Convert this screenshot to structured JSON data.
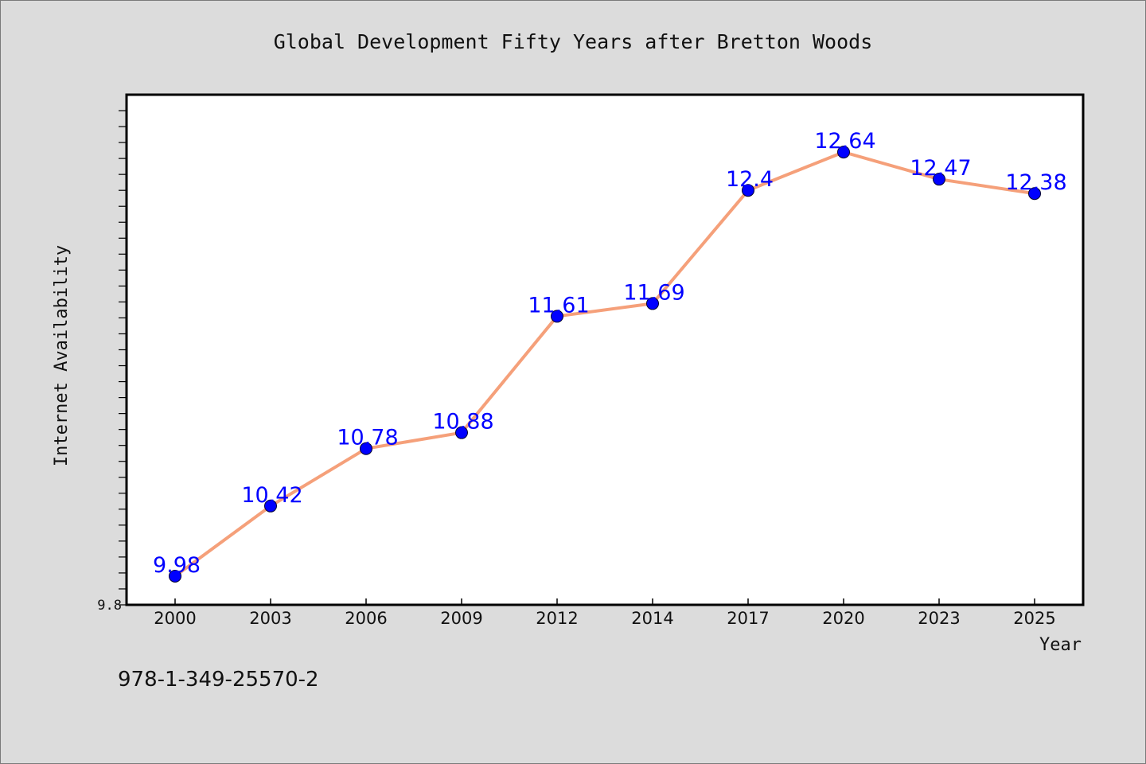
{
  "chart_data": {
    "type": "line",
    "title": "Global Development Fifty Years after Bretton Woods",
    "xlabel": "Year",
    "ylabel": "Internet Availability",
    "categories": [
      "2000",
      "2003",
      "2006",
      "2009",
      "2012",
      "2014",
      "2017",
      "2020",
      "2023",
      "2025"
    ],
    "values": [
      9.98,
      10.42,
      10.78,
      10.88,
      11.61,
      11.69,
      12.4,
      12.64,
      12.47,
      12.38
    ],
    "data_labels": [
      "9.98",
      "10.42",
      "10.78",
      "10.88",
      "11.61",
      "11.69",
      "12.4",
      "12.64",
      "12.47",
      "12.38"
    ],
    "y_tick_labels": [
      "9.8"
    ],
    "ylim": [
      9.8,
      13.0
    ],
    "grid": false,
    "colors": {
      "line": "#f5a07a",
      "marker": "#0000ff",
      "label": "#0000ff",
      "background": "#dcdcdc",
      "plot_background": "#ffffff"
    }
  },
  "footer": {
    "isbn": "978-1-349-25570-2"
  }
}
